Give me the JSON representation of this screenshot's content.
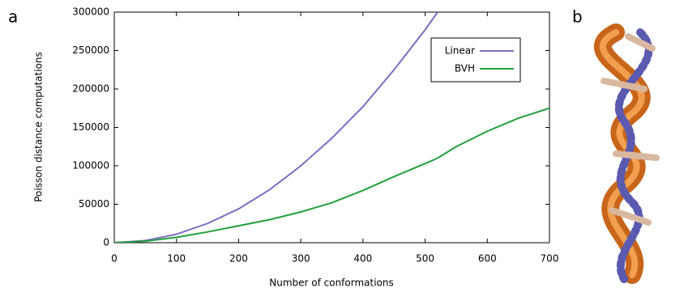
{
  "panel_labels": [
    "a",
    "b"
  ],
  "chart_data": {
    "type": "line",
    "x_label": "Number of conformations",
    "y_label": "Poisson distance computations",
    "x": [
      0,
      50,
      100,
      150,
      200,
      250,
      300,
      350,
      400,
      450,
      500,
      520,
      550,
      600,
      650,
      700
    ],
    "series": [
      {
        "name": "Linear",
        "color": "#7e6bc4",
        "values": [
          0,
          2800,
          11000,
          25000,
          44000,
          69000,
          100000,
          136000,
          177000,
          225000,
          277000,
          300000,
          null,
          null,
          null,
          null
        ]
      },
      {
        "name": "BVH",
        "color": "#23a03c",
        "values": [
          0,
          2000,
          7000,
          14000,
          22000,
          30000,
          40000,
          52000,
          68000,
          86000,
          103000,
          110000,
          125000,
          145000,
          162000,
          175000
        ]
      }
    ],
    "xlim": [
      0,
      700
    ],
    "xticks": [
      0,
      100,
      200,
      300,
      400,
      500,
      600,
      700
    ],
    "ylim": [
      0,
      300000
    ],
    "yticks": [
      0,
      50000,
      100000,
      150000,
      200000,
      250000,
      300000
    ],
    "legend": "upper right"
  }
}
